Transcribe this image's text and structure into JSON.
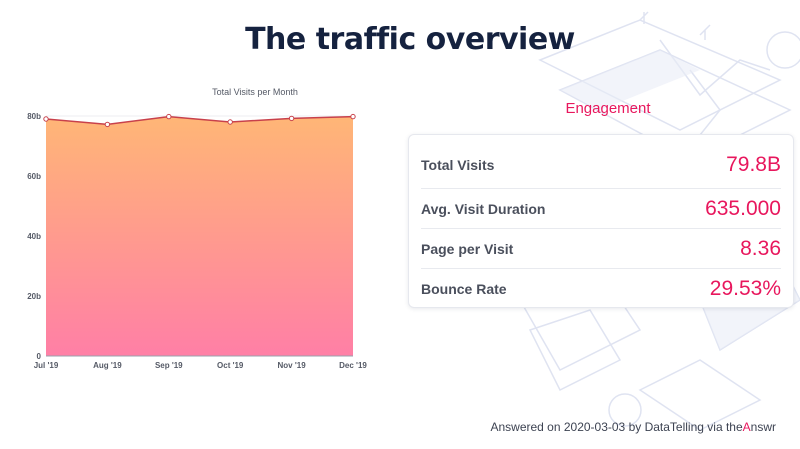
{
  "page": {
    "title": "The traffic overview",
    "footer_prefix": "Answered on 2020-03-03 by DataTelling via ",
    "footer_brand_pre": "the",
    "footer_brand_a": "A",
    "footer_brand_post": "nswr"
  },
  "engagement": {
    "title": "Engagement",
    "metrics": [
      {
        "label": "Total Visits",
        "value": "79.8B"
      },
      {
        "label": "Avg. Visit Duration",
        "value": "635.000"
      },
      {
        "label": "Page per Visit",
        "value": "8.36"
      },
      {
        "label": "Bounce Rate",
        "value": "29.53%"
      }
    ]
  },
  "colors": {
    "accent": "#e8175d",
    "line": "#c8414b",
    "area_top": "#ffb676",
    "area_bottom": "#ff7fa6"
  },
  "chart_data": {
    "type": "area",
    "title": "Total Visits per Month",
    "categories": [
      "Jul '19",
      "Aug '19",
      "Sep '19",
      "Oct '19",
      "Nov '19",
      "Dec '19"
    ],
    "series": [
      {
        "values": [
          79.0,
          77.2,
          79.8,
          78.0,
          79.2,
          79.8
        ]
      }
    ],
    "yticks": [
      "0",
      "20b",
      "40b",
      "60b",
      "80b"
    ],
    "ylim": [
      0,
      80
    ],
    "xlabel": "",
    "ylabel": "",
    "grid": true
  }
}
